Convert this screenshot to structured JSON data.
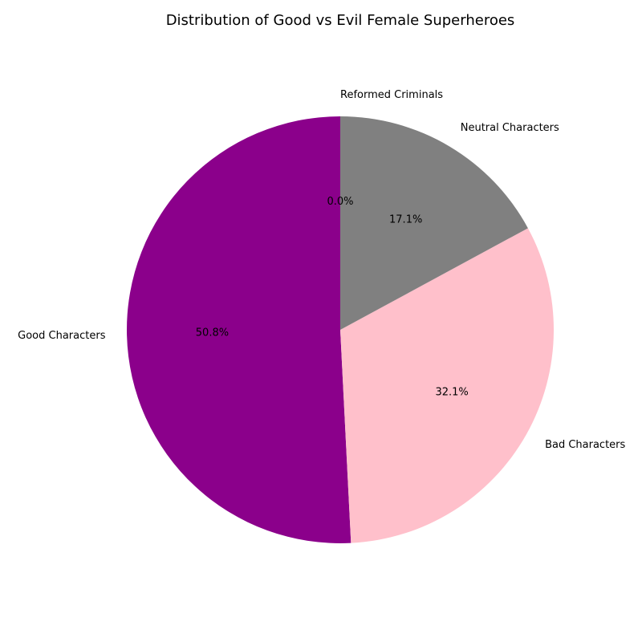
{
  "chart_data": {
    "type": "pie",
    "title": "Distribution of Good vs Evil Female Superheroes",
    "start_angle_deg": 90,
    "direction": "counterclockwise",
    "slices": [
      {
        "label": "Good Characters",
        "value": 50.8,
        "pct_label": "50.8%",
        "color": "#8B008B"
      },
      {
        "label": "Bad Characters",
        "value": 32.1,
        "pct_label": "32.1%",
        "color": "#FFC0CB"
      },
      {
        "label": "Neutral Characters",
        "value": 17.1,
        "pct_label": "17.1%",
        "color": "#808080"
      },
      {
        "label": "Reformed Criminals",
        "value": 0.0,
        "pct_label": "0.0%",
        "color": "#FFA500"
      }
    ]
  }
}
